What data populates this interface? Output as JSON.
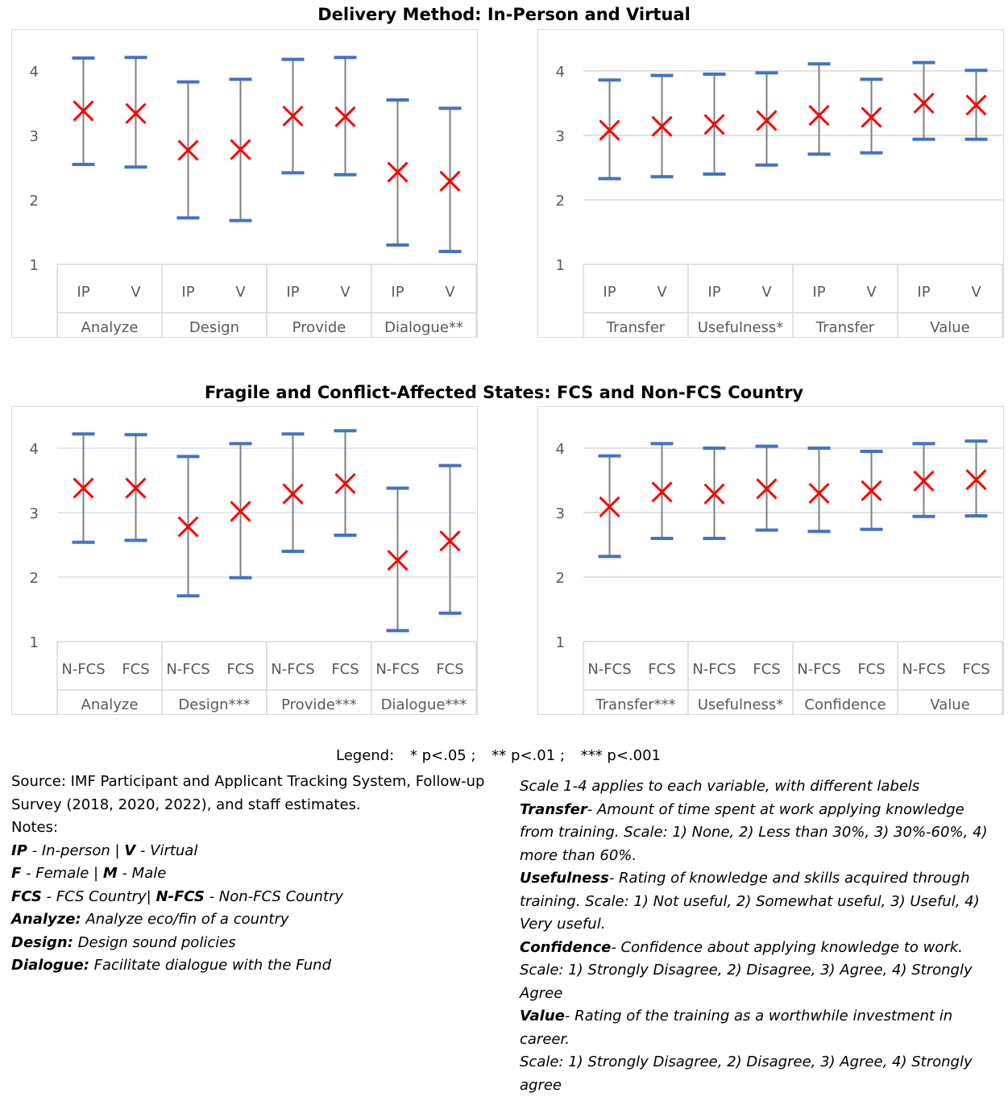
{
  "titles": {
    "delivery": "Delivery Method: In-Person and Virtual",
    "fcs": "Fragile and Conflict-Affected States: FCS and Non-FCS Country"
  },
  "colors": {
    "whisker": "#4472C4",
    "stem": "#7F7F7F",
    "marker": "#FF0000",
    "grid": "#D9D9D9",
    "grid_blue": "#D6E3F3"
  },
  "chart_data": [
    {
      "type": "errorbar",
      "section": "delivery",
      "ylim": [
        1,
        4.4
      ],
      "yticks": [
        1,
        2,
        3,
        4
      ],
      "categories": [
        "IP",
        "V",
        "IP",
        "V",
        "IP",
        "V",
        "IP",
        "V"
      ],
      "groups": [
        "Analyze",
        "Design",
        "Provide",
        "Dialogue**"
      ],
      "mean": [
        3.38,
        3.34,
        2.77,
        2.78,
        3.3,
        3.29,
        2.43,
        2.29
      ],
      "upper": [
        4.2,
        4.21,
        3.83,
        3.87,
        4.18,
        4.21,
        3.55,
        3.42
      ],
      "lower": [
        2.55,
        2.51,
        1.72,
        1.68,
        2.42,
        2.39,
        1.3,
        1.2
      ],
      "grid": false
    },
    {
      "type": "errorbar",
      "section": "delivery",
      "ylim": [
        1,
        4.4
      ],
      "yticks": [
        1,
        2,
        3,
        4
      ],
      "categories": [
        "IP",
        "V",
        "IP",
        "V",
        "IP",
        "V",
        "IP",
        "V"
      ],
      "groups": [
        "Transfer",
        "Usefulness*",
        "Transfer",
        "Value"
      ],
      "mean": [
        3.08,
        3.14,
        3.17,
        3.23,
        3.31,
        3.28,
        3.5,
        3.47
      ],
      "upper": [
        3.86,
        3.93,
        3.95,
        3.97,
        4.11,
        3.87,
        4.13,
        4.01
      ],
      "lower": [
        2.33,
        2.36,
        2.4,
        2.54,
        2.71,
        2.73,
        2.94,
        2.94
      ],
      "grid": true
    },
    {
      "type": "errorbar",
      "section": "fcs",
      "ylim": [
        1,
        4.4
      ],
      "yticks": [
        1,
        2,
        3,
        4
      ],
      "categories": [
        "N-FCS",
        "FCS",
        "N-FCS",
        "FCS",
        "N-FCS",
        "FCS",
        "N-FCS",
        "FCS"
      ],
      "groups": [
        "Analyze",
        "Design***",
        "Provide***",
        "Dialogue***"
      ],
      "mean": [
        3.38,
        3.38,
        2.78,
        3.02,
        3.29,
        3.45,
        2.26,
        2.56
      ],
      "upper": [
        4.22,
        4.21,
        3.87,
        4.07,
        4.22,
        4.27,
        3.38,
        3.73
      ],
      "lower": [
        2.54,
        2.57,
        1.71,
        1.99,
        2.4,
        2.65,
        1.17,
        1.44
      ],
      "grid": true
    },
    {
      "type": "errorbar",
      "section": "fcs",
      "ylim": [
        1,
        4.4
      ],
      "yticks": [
        1,
        2,
        3,
        4
      ],
      "categories": [
        "N-FCS",
        "FCS",
        "N-FCS",
        "FCS",
        "N-FCS",
        "FCS",
        "N-FCS",
        "FCS"
      ],
      "groups": [
        "Transfer***",
        "Usefulness*",
        "Confidence",
        "Value"
      ],
      "mean": [
        3.09,
        3.32,
        3.29,
        3.37,
        3.3,
        3.34,
        3.49,
        3.51
      ],
      "upper": [
        3.88,
        4.07,
        4.0,
        4.03,
        4.0,
        3.95,
        4.07,
        4.11
      ],
      "lower": [
        2.32,
        2.6,
        2.6,
        2.73,
        2.71,
        2.74,
        2.94,
        2.95
      ],
      "grid": true
    }
  ],
  "legend": {
    "prefix": "Legend:",
    "items": [
      "* p<.05 ;",
      "** p<.01 ;",
      "*** p<.001"
    ]
  },
  "notes_left": {
    "source": "Source: IMF Participant and Applicant Tracking System, Follow-up Survey (2018, 2020, 2022), and staff estimates.",
    "notes_label": "Notes:",
    "ip_key": "IP",
    "ip_text": " - In-person | ",
    "v_key": "V",
    "v_text": " - Virtual",
    "f_key": "F",
    "f_text": " - Female | ",
    "m_key": "M",
    "m_text": " - Male",
    "fcs_key": "FCS",
    "fcs_text": " - FCS Country| ",
    "nfcs_key": "N-FCS",
    "nfcs_text": " - Non-FCS Country",
    "analyze_key": "Analyze:",
    "analyze_text": " Analyze eco/fin of a country",
    "design_key": "Design:",
    "design_text": " Design sound policies",
    "dialogue_key": "Dialogue:",
    "dialogue_text": " Facilitate dialogue with the Fund"
  },
  "notes_right": {
    "scale_intro": "Scale 1-4 applies to each variable, with different labels",
    "transfer_key": "Transfer",
    "transfer_text": "- Amount of time spent at work applying knowledge from training. Scale: 1) None, 2) Less than 30%, 3) 30%-60%, 4) more than 60%.",
    "usefulness_key": "Usefulness",
    "usefulness_text": "- Rating of knowledge and skills acquired through training. Scale: 1) Not useful, 2) Somewhat useful, 3) Useful, 4) Very useful.",
    "confidence_key": "Confidence",
    "confidence_text": "- Confidence about applying knowledge to work. Scale: 1) Strongly Disagree, 2) Disagree, 3) Agree, 4) Strongly Agree",
    "value_key": "Value",
    "value_text": "- Rating of the training as a worthwhile investment in career.",
    "value_scale": "Scale: 1) Strongly Disagree, 2) Disagree, 3) Agree, 4) Strongly agree"
  }
}
